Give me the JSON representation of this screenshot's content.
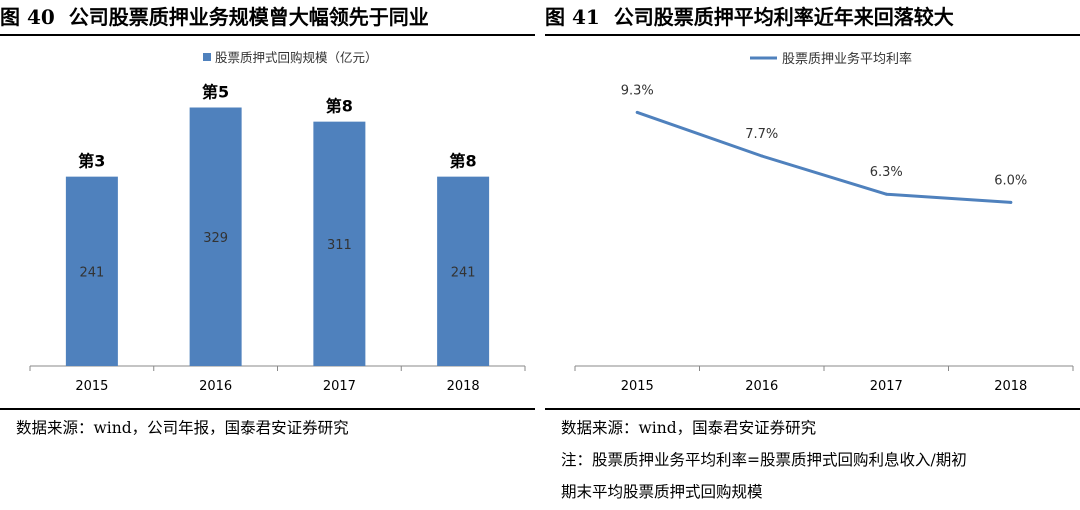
{
  "left_panel": {
    "fig_num": "图 40",
    "fig_title": "公司股票质押业务规模曾大幅领先于同业",
    "source": "数据来源：wind，公司年报，国泰君安证券研究"
  },
  "right_panel": {
    "fig_num": "图 41",
    "fig_title": "公司股票质押平均利率近年来回落较大",
    "source": "数据来源：wind，国泰君安证券研究",
    "note_line1": "注：股票质押业务平均利率=股票质押式回购利息收入/期初",
    "note_line2": "期末平均股票质押式回购规模"
  },
  "colors": {
    "bar": "#4F81BD",
    "line": "#4F81BD",
    "axis": "#888888"
  },
  "chart_data": [
    {
      "type": "bar",
      "categories": [
        "2015",
        "2016",
        "2017",
        "2018"
      ],
      "series": [
        {
          "name": "股票质押式回购规模（亿元）",
          "values": [
            241,
            329,
            311,
            241
          ]
        }
      ],
      "data_labels": [
        "241",
        "329",
        "311",
        "241"
      ],
      "rank_labels": [
        "第3",
        "第5",
        "第8",
        "第8"
      ],
      "ylim": [
        0,
        350
      ],
      "grid": false,
      "legend_position": "top"
    },
    {
      "type": "line",
      "categories": [
        "2015",
        "2016",
        "2017",
        "2018"
      ],
      "series": [
        {
          "name": "股票质押业务平均利率",
          "values": [
            9.3,
            7.7,
            6.3,
            6.0
          ]
        }
      ],
      "data_labels": [
        "9.3%",
        "7.7%",
        "6.3%",
        "6.0%"
      ],
      "ylim": [
        0,
        11
      ],
      "grid": false,
      "legend_position": "top"
    }
  ]
}
